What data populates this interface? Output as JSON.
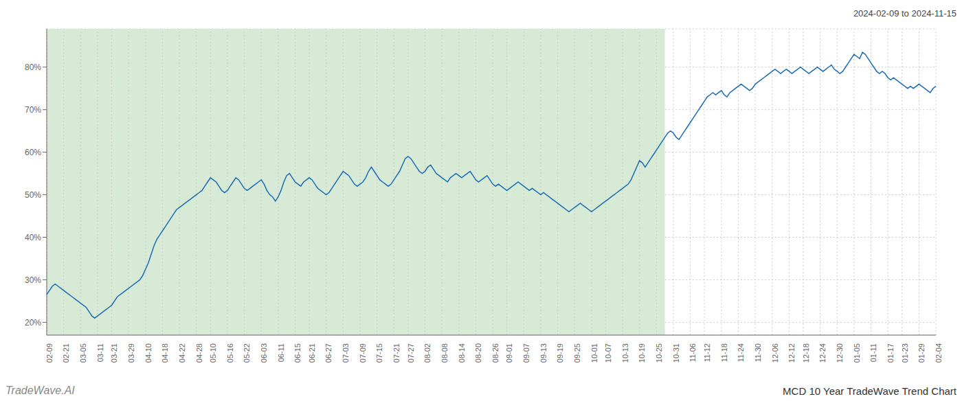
{
  "chart_data": {
    "type": "line",
    "title": "MCD 10 Year TradeWave Trend Chart",
    "subtitle": "2024-02-09 to 2024-11-15",
    "annotations": [
      "TradeWave.AI"
    ],
    "color": "#1a6bb5",
    "grid": true,
    "ylim": [
      17,
      89
    ],
    "yticks": [
      {
        "value": 20,
        "label": "20%"
      },
      {
        "value": 30,
        "label": "30%"
      },
      {
        "value": 40,
        "label": "40%"
      },
      {
        "value": 50,
        "label": "50%"
      },
      {
        "value": 60,
        "label": "60%"
      },
      {
        "value": 70,
        "label": "70%"
      },
      {
        "value": 80,
        "label": "80%"
      }
    ],
    "shaded_region": {
      "from": 0,
      "to": 219,
      "color": "#d6ead6"
    },
    "categories": [
      "02-09",
      null,
      null,
      null,
      null,
      null,
      "02-21",
      null,
      null,
      null,
      null,
      null,
      "03-05",
      null,
      null,
      null,
      null,
      null,
      "03-11",
      null,
      null,
      null,
      null,
      "03-21",
      null,
      null,
      null,
      null,
      null,
      "03-29",
      null,
      null,
      null,
      null,
      null,
      "04-10",
      null,
      null,
      null,
      null,
      null,
      "04-18",
      null,
      null,
      null,
      null,
      null,
      "04-22",
      null,
      null,
      null,
      null,
      null,
      "04-28",
      null,
      null,
      null,
      null,
      "05-10",
      null,
      null,
      null,
      null,
      null,
      "05-16",
      null,
      null,
      null,
      null,
      null,
      "05-22",
      null,
      null,
      null,
      null,
      null,
      "06-03",
      null,
      null,
      null,
      null,
      null,
      "06-11",
      null,
      null,
      null,
      null,
      null,
      "06-15",
      null,
      null,
      null,
      null,
      "06-21",
      null,
      null,
      null,
      null,
      null,
      "06-27",
      null,
      null,
      null,
      null,
      null,
      "07-03",
      null,
      null,
      null,
      null,
      null,
      "07-09",
      null,
      null,
      null,
      null,
      null,
      "07-15",
      null,
      null,
      null,
      null,
      null,
      "07-21",
      null,
      null,
      null,
      null,
      "07-27",
      null,
      null,
      null,
      null,
      null,
      "08-02",
      null,
      null,
      null,
      null,
      null,
      "08-08",
      null,
      null,
      null,
      null,
      null,
      "08-14",
      null,
      null,
      null,
      null,
      null,
      "08-20",
      null,
      null,
      null,
      null,
      null,
      "08-26",
      null,
      null,
      null,
      null,
      "09-01",
      null,
      null,
      null,
      null,
      null,
      "09-07",
      null,
      null,
      null,
      null,
      null,
      "09-13",
      null,
      null,
      null,
      null,
      null,
      "09-19",
      null,
      null,
      null,
      null,
      null,
      "09-25",
      null,
      null,
      null,
      null,
      null,
      "10-01",
      null,
      null,
      null,
      null,
      "10-07",
      null,
      null,
      null,
      null,
      null,
      "10-13",
      null,
      null,
      null,
      null,
      null,
      "10-19",
      null,
      null,
      null,
      null,
      null,
      "10-25",
      null,
      null,
      null,
      null,
      null,
      "10-31",
      null,
      null,
      null,
      null,
      null,
      "11-06",
      null,
      null,
      null,
      null,
      "11-12",
      null,
      null,
      null,
      null,
      null,
      "11-18",
      null,
      null,
      null,
      null,
      null,
      "11-24",
      null,
      null,
      null,
      null,
      null,
      "11-30",
      null,
      null,
      null,
      null,
      null,
      "12-06",
      null,
      null,
      null,
      null,
      null,
      "12-12",
      null,
      null,
      null,
      null,
      "12-18",
      null,
      null,
      null,
      null,
      null,
      "12-24",
      null,
      null,
      null,
      null,
      null,
      "12-30",
      null,
      null,
      null,
      null,
      null,
      "01-05",
      null,
      null,
      null,
      null,
      null,
      "01-11",
      null,
      null,
      null,
      null,
      null,
      "01-17",
      null,
      null,
      null,
      null,
      "01-23",
      null,
      null,
      null,
      null,
      null,
      "01-29",
      null,
      null,
      null,
      null,
      null,
      "02-04"
    ],
    "values": [
      26.5,
      27.5,
      28.5,
      29.0,
      28.5,
      28.0,
      27.5,
      27.0,
      26.5,
      26.0,
      25.5,
      25.0,
      24.5,
      24.0,
      23.5,
      22.5,
      21.5,
      21.0,
      21.5,
      22.0,
      22.5,
      23.0,
      23.5,
      24.0,
      25.0,
      26.0,
      26.5,
      27.0,
      27.5,
      28.0,
      28.5,
      29.0,
      29.5,
      30.0,
      31.0,
      32.5,
      34.0,
      36.0,
      38.0,
      39.5,
      40.5,
      41.5,
      42.5,
      43.5,
      44.5,
      45.5,
      46.5,
      47.0,
      47.5,
      48.0,
      48.5,
      49.0,
      49.5,
      50.0,
      50.5,
      51.0,
      52.0,
      53.0,
      54.0,
      53.5,
      53.0,
      52.0,
      51.0,
      50.5,
      51.0,
      52.0,
      53.0,
      54.0,
      53.5,
      52.5,
      51.5,
      51.0,
      51.5,
      52.0,
      52.5,
      53.0,
      53.5,
      52.5,
      51.0,
      50.0,
      49.5,
      48.5,
      49.5,
      51.0,
      53.0,
      54.5,
      55.0,
      54.0,
      53.0,
      52.5,
      52.0,
      53.0,
      53.5,
      54.0,
      53.5,
      52.5,
      51.5,
      51.0,
      50.5,
      50.0,
      50.5,
      51.5,
      52.5,
      53.5,
      54.5,
      55.5,
      55.0,
      54.5,
      53.5,
      52.5,
      52.0,
      52.5,
      53.0,
      54.0,
      55.5,
      56.5,
      55.5,
      54.5,
      53.5,
      53.0,
      52.5,
      52.0,
      52.5,
      53.5,
      54.5,
      55.5,
      57.0,
      58.5,
      59.0,
      58.5,
      57.5,
      56.5,
      55.5,
      55.0,
      55.5,
      56.5,
      57.0,
      56.0,
      55.0,
      54.5,
      54.0,
      53.5,
      53.0,
      54.0,
      54.5,
      55.0,
      54.5,
      54.0,
      54.5,
      55.0,
      55.5,
      54.5,
      53.5,
      53.0,
      53.5,
      54.0,
      54.5,
      53.5,
      52.5,
      52.0,
      52.5,
      52.0,
      51.5,
      51.0,
      51.5,
      52.0,
      52.5,
      53.0,
      52.5,
      52.0,
      51.5,
      51.0,
      51.5,
      51.0,
      50.5,
      50.0,
      50.5,
      50.0,
      49.5,
      49.0,
      48.5,
      48.0,
      47.5,
      47.0,
      46.5,
      46.0,
      46.5,
      47.0,
      47.5,
      48.0,
      47.5,
      47.0,
      46.5,
      46.0,
      46.5,
      47.0,
      47.5,
      48.0,
      48.5,
      49.0,
      49.5,
      50.0,
      50.5,
      51.0,
      51.5,
      52.0,
      52.5,
      53.5,
      55.0,
      56.5,
      58.0,
      57.5,
      56.5,
      57.5,
      58.5,
      59.5,
      60.5,
      61.5,
      62.5,
      63.5,
      64.5,
      65.0,
      64.5,
      63.5,
      63.0,
      64.0,
      65.0,
      66.0,
      67.0,
      68.0,
      69.0,
      70.0,
      71.0,
      72.0,
      73.0,
      73.5,
      74.0,
      73.5,
      74.0,
      74.5,
      73.5,
      73.0,
      74.0,
      74.5,
      75.0,
      75.5,
      76.0,
      75.5,
      75.0,
      74.5,
      75.0,
      76.0,
      76.5,
      77.0,
      77.5,
      78.0,
      78.5,
      79.0,
      79.5,
      79.0,
      78.5,
      79.0,
      79.5,
      79.0,
      78.5,
      79.0,
      79.5,
      80.0,
      79.5,
      79.0,
      78.5,
      79.0,
      79.5,
      80.0,
      79.5,
      79.0,
      79.5,
      80.0,
      80.5,
      79.5,
      79.0,
      78.5,
      79.0,
      80.0,
      81.0,
      82.0,
      83.0,
      82.5,
      82.0,
      83.5,
      83.0,
      82.0,
      81.0,
      80.0,
      79.0,
      78.5,
      79.0,
      78.5,
      77.5,
      77.0,
      77.5,
      77.0,
      76.5,
      76.0,
      75.5,
      75.0,
      75.5,
      75.0,
      75.5,
      76.0,
      75.5,
      75.0,
      74.5,
      74.0,
      75.0,
      75.5
    ]
  }
}
